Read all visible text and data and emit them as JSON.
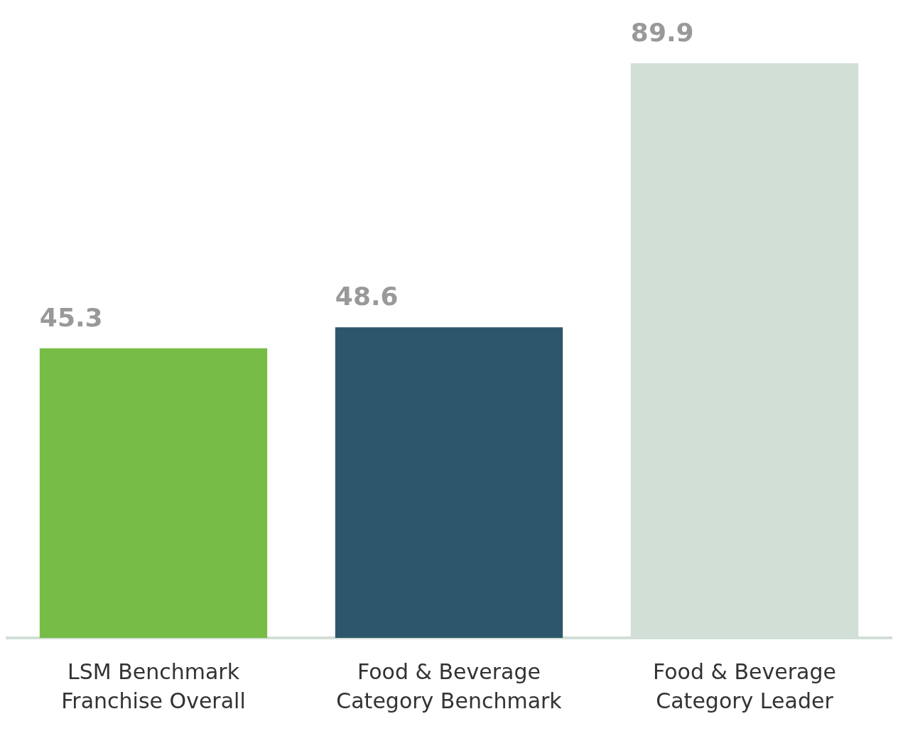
{
  "chart_data": {
    "type": "bar",
    "categories": [
      "LSM Benchmark Franchise Overall",
      "Food & Beverage Category Benchmark",
      "Food & Beverage Category Leader"
    ],
    "values": [
      45.3,
      48.6,
      89.9
    ],
    "colors": [
      "#77bc46",
      "#2d566b",
      "#d1dfd6"
    ],
    "data_labels": true,
    "grid": false,
    "legend": false
  }
}
